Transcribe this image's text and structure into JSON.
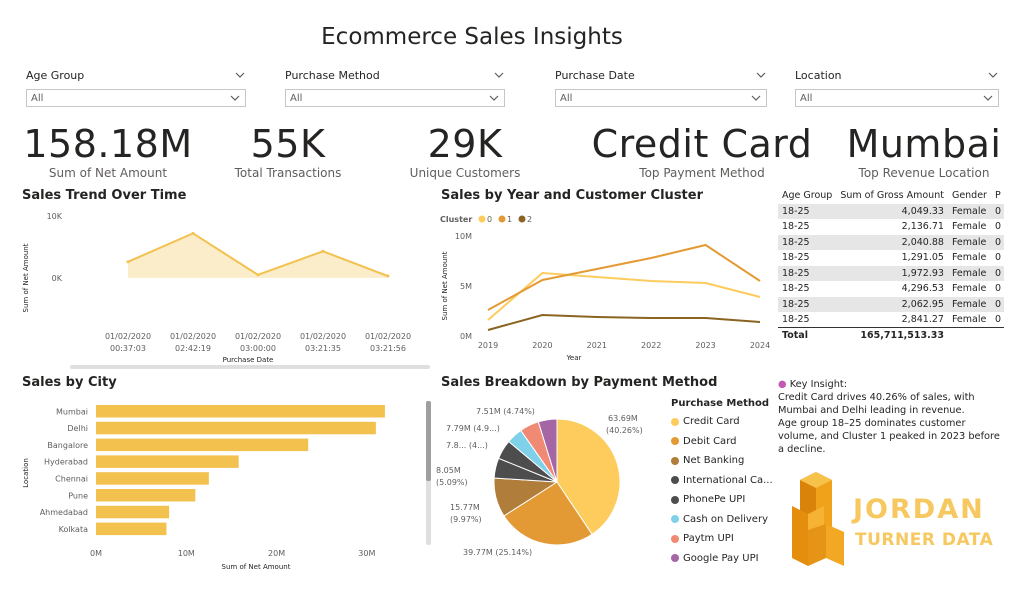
{
  "title": "Ecommerce Sales Insights",
  "slicers": [
    {
      "label": "Age Group",
      "value": "All"
    },
    {
      "label": "Purchase Method",
      "value": "All"
    },
    {
      "label": "Purchase Date",
      "value": "All"
    },
    {
      "label": "Location",
      "value": "All"
    }
  ],
  "kpis": [
    {
      "value": "158.18M",
      "label": "Sum of Net Amount"
    },
    {
      "value": "55K",
      "label": "Total Transactions"
    },
    {
      "value": "29K",
      "label": "Unique Customers"
    },
    {
      "value": "Credit Card",
      "label": "Top Payment Method"
    },
    {
      "value": "Mumbai",
      "label": "Top Revenue Location"
    }
  ],
  "colors": {
    "gold": "#f2c14e",
    "yellow": "#fdcc5c",
    "orange": "#e49a34",
    "brown": "#b07d3b",
    "darkbrown": "#8a6420",
    "darkgray": "#4d4d4d",
    "skyblue": "#7fd1ea",
    "salmon": "#f08a74",
    "purple": "#a566a6"
  },
  "table": {
    "headers": [
      "Age Group",
      "Sum of Gross Amount",
      "Gender",
      "P"
    ],
    "rows": [
      [
        "18-25",
        "4,049.33",
        "Female",
        "0"
      ],
      [
        "18-25",
        "2,136.71",
        "Female",
        "0"
      ],
      [
        "18-25",
        "2,040.88",
        "Female",
        "0"
      ],
      [
        "18-25",
        "1,291.05",
        "Female",
        "0"
      ],
      [
        "18-25",
        "1,972.93",
        "Female",
        "0"
      ],
      [
        "18-25",
        "4,296.53",
        "Female",
        "0"
      ],
      [
        "18-25",
        "2,062.95",
        "Female",
        "0"
      ],
      [
        "18-25",
        "2,841.27",
        "Female",
        "0"
      ]
    ],
    "total_label": "Total",
    "total_value": "165,711,513.33"
  },
  "insight": {
    "heading": "Key Insight:",
    "line1": "Credit Card drives 40.26% of sales, with Mumbai and Delhi leading in revenue.",
    "line2": "Age group 18–25 dominates customer volume, and Cluster 1 peaked in 2023 before a decline."
  },
  "logo": {
    "line1": "JORDAN",
    "line2": "TURNER DATA"
  },
  "chart_data": [
    {
      "id": "trend",
      "type": "area",
      "title": "Sales Trend Over Time",
      "xlabel": "Purchase Date",
      "ylabel": "Sum of Net Amount",
      "y_ticks": [
        "10K",
        "0K"
      ],
      "categories": [
        [
          "01/02/2020",
          "00:37:03"
        ],
        [
          "01/02/2020",
          "02:42:19"
        ],
        [
          "01/02/2020",
          "03:00:00"
        ],
        [
          "01/02/2020",
          "03:21:35"
        ],
        [
          "01/02/2020",
          "03:21:56"
        ]
      ],
      "values": [
        2600,
        7200,
        500,
        4300,
        300
      ],
      "ylim": [
        -11000,
        10000
      ]
    },
    {
      "id": "cluster",
      "type": "line",
      "title": "Sales by Year and Customer Cluster",
      "legend_title": "Cluster",
      "xlabel": "Year",
      "ylabel": "Sum of Net Amount",
      "x": [
        "2019",
        "2020",
        "2021",
        "2022",
        "2023",
        "2024"
      ],
      "y_ticks": [
        "10M",
        "5M",
        "0M"
      ],
      "ylim": [
        0,
        10000000
      ],
      "series": [
        {
          "name": "0",
          "values": [
            1600000,
            6300000,
            5900000,
            5500000,
            5300000,
            3900000
          ]
        },
        {
          "name": "1",
          "values": [
            2600000,
            5600000,
            6700000,
            7800000,
            9100000,
            5500000
          ]
        },
        {
          "name": "2",
          "values": [
            600000,
            2100000,
            1900000,
            1800000,
            1800000,
            1400000
          ]
        }
      ]
    },
    {
      "id": "city",
      "type": "bar",
      "title": "Sales by City",
      "xlabel": "Sum of Net Amount",
      "ylabel": "Location",
      "categories": [
        "Mumbai",
        "Delhi",
        "Bangalore",
        "Hyderabad",
        "Chennai",
        "Pune",
        "Ahmedabad",
        "Kolkata"
      ],
      "values": [
        32000000,
        31000000,
        23500000,
        15800000,
        12500000,
        11000000,
        8100000,
        7800000
      ],
      "x_ticks": [
        "0M",
        "10M",
        "20M",
        "30M"
      ],
      "xlim": [
        0,
        35000000
      ]
    },
    {
      "id": "payment",
      "type": "pie",
      "title": "Sales Breakdown by Payment Method",
      "legend_title": "Purchase Method",
      "labels": [
        "Credit Card",
        "Debit Card",
        "Net Banking",
        "International Ca...",
        "PhonePe UPI",
        "Cash on Delivery",
        "Paytm UPI",
        "Google Pay UPI"
      ],
      "values": [
        63.69,
        39.77,
        15.77,
        8.05,
        7.8,
        6.5,
        7.79,
        7.51
      ],
      "percents": [
        40.26,
        25.14,
        9.97,
        5.09,
        4.9,
        4.1,
        4.92,
        4.74
      ],
      "data_labels": [
        "63.69M (40.26%)",
        "39.77M (25.14%)",
        "15.77M (9.97%)",
        "8.05M (5.09%)",
        "7.8... (4...)",
        "",
        "7.79M (4.9...)",
        "7.51M (4.74%)"
      ]
    }
  ]
}
